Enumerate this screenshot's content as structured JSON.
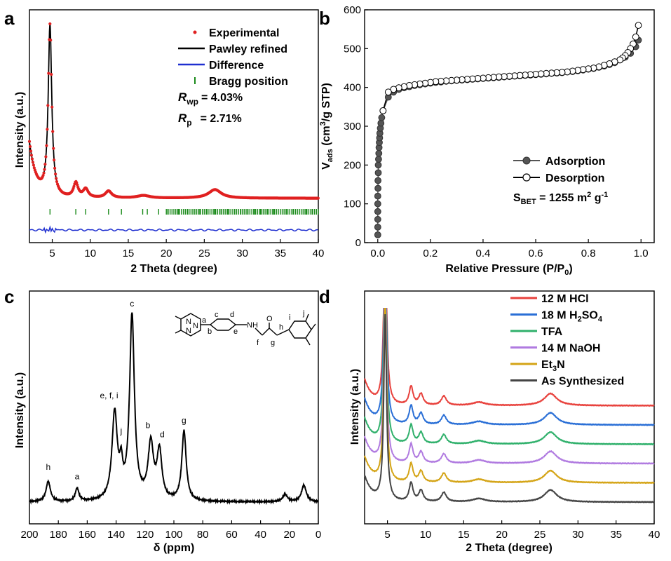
{
  "chart_data": [
    {
      "panel": "a",
      "type": "line",
      "xlabel": "2 Theta (degree)",
      "ylabel": "Intensity (a.u.)",
      "xlim": [
        2,
        40
      ],
      "xticks": [
        "5",
        "10",
        "15",
        "20",
        "25",
        "30",
        "35",
        "40"
      ],
      "peaks": [
        {
          "x": 4.7,
          "height": 1.0,
          "width": 0.28
        },
        {
          "x": 8.1,
          "height": 0.085,
          "width": 0.35
        },
        {
          "x": 9.4,
          "height": 0.05,
          "width": 0.4
        },
        {
          "x": 12.4,
          "height": 0.04,
          "width": 0.5
        },
        {
          "x": 17.0,
          "height": 0.015,
          "width": 1.0
        },
        {
          "x": 26.4,
          "height": 0.05,
          "width": 1.0
        }
      ],
      "baseline": 0.03,
      "bragg_positions": [
        4.7,
        8.1,
        9.4,
        12.4,
        14.1,
        16.9,
        17.5,
        19.0,
        20.2,
        21.6,
        22.8,
        23.5,
        24.4,
        25.3,
        26.4,
        27.2,
        28.1,
        29.0,
        29.8,
        30.7,
        31.6,
        32.4,
        33.3,
        34.1,
        35.0,
        35.8,
        36.7,
        37.5,
        38.4,
        39.2
      ],
      "legend": [
        {
          "name": "Experimental",
          "color": "#e02020",
          "marker": "dot"
        },
        {
          "name": "Pawley refined",
          "color": "#000000",
          "marker": "line"
        },
        {
          "name": "Difference",
          "color": "#1f2fd0",
          "marker": "line"
        },
        {
          "name": "Bragg position",
          "color": "#1a8a1a",
          "marker": "tick"
        }
      ],
      "legend_position": "top-right",
      "annotations": [
        {
          "label": "R",
          "sub": "wp",
          "value": "= 4.03%"
        },
        {
          "label": "R",
          "sub": "p",
          "value": "= 2.71%"
        }
      ]
    },
    {
      "panel": "b",
      "type": "line",
      "xlabel_main": "Relative Pressure (P/P",
      "xlabel_sub": "0",
      "xlabel_close": ")",
      "ylabel_parts": [
        "V",
        "ads",
        " (cm",
        "3",
        "/g STP)"
      ],
      "xlim": [
        -0.05,
        1.05
      ],
      "ylim": [
        0,
        600
      ],
      "xticks": [
        "0.0",
        "0.2",
        "0.4",
        "0.6",
        "0.8",
        "1.0"
      ],
      "yticks": [
        "0",
        "100",
        "200",
        "300",
        "400",
        "500",
        "600"
      ],
      "series": [
        {
          "name": "Adsorption",
          "marker": "filled",
          "color": "#555555",
          "x": [
            0.0,
            0.0,
            0.0,
            0.0,
            0.0,
            0.0,
            0.001,
            0.001,
            0.002,
            0.002,
            0.003,
            0.004,
            0.005,
            0.006,
            0.007,
            0.008,
            0.01,
            0.012,
            0.015,
            0.02,
            0.04,
            0.06,
            0.08,
            0.1,
            0.12,
            0.14,
            0.16,
            0.18,
            0.2,
            0.22,
            0.24,
            0.26,
            0.28,
            0.3,
            0.32,
            0.34,
            0.36,
            0.38,
            0.4,
            0.42,
            0.44,
            0.46,
            0.48,
            0.5,
            0.52,
            0.54,
            0.56,
            0.58,
            0.6,
            0.62,
            0.64,
            0.66,
            0.68,
            0.7,
            0.72,
            0.74,
            0.76,
            0.78,
            0.8,
            0.82,
            0.84,
            0.86,
            0.88,
            0.9,
            0.92,
            0.94,
            0.96,
            0.98,
            0.99
          ],
          "y": [
            20,
            40,
            60,
            80,
            100,
            120,
            140,
            160,
            180,
            200,
            215,
            230,
            245,
            258,
            270,
            282,
            295,
            308,
            322,
            340,
            375,
            388,
            395,
            399,
            402,
            405,
            407,
            409,
            411,
            413,
            414,
            416,
            417,
            418,
            419,
            420,
            421,
            422,
            423,
            424,
            425,
            426,
            427,
            428,
            429,
            430,
            431,
            432,
            433,
            434,
            435,
            436,
            437,
            438,
            440,
            441,
            443,
            445,
            447,
            449,
            452,
            455,
            459,
            464,
            471,
            478,
            488,
            505,
            522
          ]
        },
        {
          "name": "Desorption",
          "marker": "open",
          "color": "#000000",
          "x": [
            0.99,
            0.98,
            0.97,
            0.96,
            0.95,
            0.94,
            0.93,
            0.92,
            0.9,
            0.88,
            0.86,
            0.84,
            0.82,
            0.8,
            0.78,
            0.76,
            0.74,
            0.72,
            0.7,
            0.68,
            0.66,
            0.64,
            0.62,
            0.6,
            0.58,
            0.56,
            0.54,
            0.52,
            0.5,
            0.48,
            0.46,
            0.44,
            0.42,
            0.4,
            0.38,
            0.36,
            0.34,
            0.32,
            0.3,
            0.28,
            0.26,
            0.24,
            0.22,
            0.2,
            0.18,
            0.16,
            0.14,
            0.12,
            0.1,
            0.08,
            0.06,
            0.04,
            0.02
          ],
          "y": [
            560,
            530,
            512,
            500,
            490,
            482,
            476,
            471,
            466,
            461,
            457,
            453,
            450,
            448,
            446,
            444,
            442,
            440,
            439,
            438,
            437,
            436,
            435,
            434,
            433,
            432,
            431,
            430,
            429,
            428,
            427,
            426,
            425,
            424,
            423,
            422,
            421,
            420,
            419,
            418,
            417,
            416,
            415,
            413,
            411,
            409,
            407,
            405,
            402,
            399,
            395,
            388,
            340
          ]
        }
      ],
      "legend_position": "bottom-right",
      "annotation": {
        "main": "S",
        "sub": "BET",
        "value": " = 1255 m",
        "sup": "2",
        "tail": " g",
        "sup2": "-1"
      }
    },
    {
      "panel": "c",
      "type": "line",
      "xlabel": "δ (ppm)",
      "ylabel": "Intensity (a.u.)",
      "xlim": [
        200,
        0
      ],
      "xticks": [
        "200",
        "180",
        "160",
        "140",
        "120",
        "100",
        "80",
        "60",
        "40",
        "20",
        "0"
      ],
      "peaks": [
        {
          "x": 187,
          "height": 0.11,
          "width": 1.8,
          "label": "h"
        },
        {
          "x": 167,
          "height": 0.07,
          "width": 1.5,
          "label": "a"
        },
        {
          "x": 141,
          "height": 0.47,
          "width": 2.2,
          "label": "e, f, i"
        },
        {
          "x": 136.5,
          "height": 0.14,
          "width": 1.2,
          "label": "j"
        },
        {
          "x": 129,
          "height": 1.0,
          "width": 2.0,
          "label": "c"
        },
        {
          "x": 116,
          "height": 0.3,
          "width": 2.2,
          "label": "b"
        },
        {
          "x": 110,
          "height": 0.26,
          "width": 2.0,
          "label": "d"
        },
        {
          "x": 93,
          "height": 0.38,
          "width": 1.8,
          "label": "g"
        },
        {
          "x": 23,
          "height": 0.04,
          "width": 2.0
        },
        {
          "x": 10,
          "height": 0.09,
          "width": 2.0
        }
      ],
      "molecule_labels": [
        "a",
        "b",
        "c",
        "d",
        "e",
        "NH",
        "f",
        "g",
        "O",
        "h",
        "i",
        "j"
      ]
    },
    {
      "panel": "d",
      "type": "line",
      "xlabel": "2 Theta (degree)",
      "ylabel": "Intensity (a.u.)",
      "xlim": [
        2,
        40
      ],
      "xticks": [
        "5",
        "10",
        "15",
        "20",
        "25",
        "30",
        "35",
        "40"
      ],
      "legend_position": "top-right",
      "series": [
        {
          "name": "12 M HCl",
          "color": "#e8413c",
          "offset": 5
        },
        {
          "name": "18 M H",
          "sub": "2",
          "tail": "SO",
          "sub2": "4",
          "color": "#2a6fd6",
          "offset": 4
        },
        {
          "name": "TFA",
          "color": "#2fb06b",
          "offset": 3
        },
        {
          "name": "14 M NaOH",
          "color": "#b07ae0",
          "offset": 2
        },
        {
          "name": "Et",
          "sub": "3",
          "tail": "N",
          "color": "#d4a416",
          "offset": 1
        },
        {
          "name": "As Synthesized",
          "color": "#444444",
          "offset": 0
        }
      ]
    }
  ]
}
